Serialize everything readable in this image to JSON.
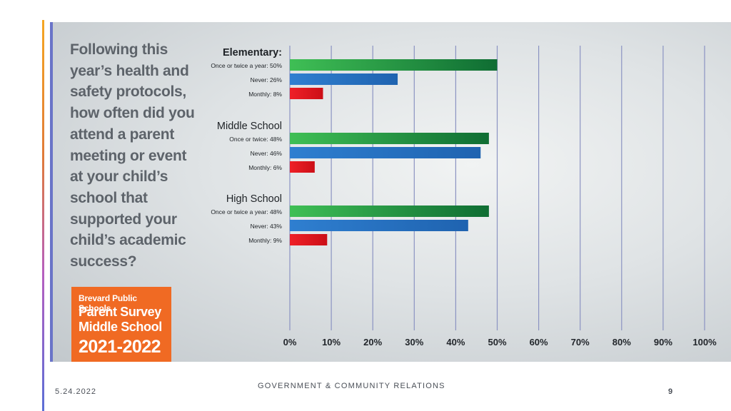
{
  "question": "Following this\nyear’s health and\nsafety protocols,\nhow often did you\nattend a parent\nmeeting or event\nat your child’s\nschool that\nsupported your\nchild’s academic\nsuccess?",
  "badge": {
    "line1": "Brevard Public Schools",
    "line2": "Parent Survey",
    "line3": "Middle School",
    "line4": "2021-2022",
    "color": "#f06a23"
  },
  "footer": {
    "date": "5.24.2022",
    "title": "GOVERNMENT & COMMUNITY RELATIONS",
    "page": "9"
  },
  "chart_data": {
    "type": "bar",
    "orientation": "horizontal",
    "xlim": [
      0,
      100
    ],
    "grid": true,
    "x_ticks": [
      "0%",
      "10%",
      "20%",
      "30%",
      "40%",
      "50%",
      "60%",
      "70%",
      "80%",
      "90%",
      "100%"
    ],
    "colors": {
      "green": "#2aa84a",
      "blue": "#2a72c4",
      "red": "#e0161e"
    },
    "groups": [
      {
        "name": "Elementary:",
        "bars": [
          {
            "label": "Once or twice a year: 50%",
            "value": 50,
            "color": "green"
          },
          {
            "label": "Never: 26%",
            "value": 26,
            "color": "blue"
          },
          {
            "label": "Monthly: 8%",
            "value": 8,
            "color": "red"
          }
        ]
      },
      {
        "name": "Middle School",
        "bars": [
          {
            "label": "Once or twice: 48%",
            "value": 48,
            "color": "green"
          },
          {
            "label": "Never: 46%",
            "value": 46,
            "color": "blue"
          },
          {
            "label": "Monthly: 6%",
            "value": 6,
            "color": "red"
          }
        ]
      },
      {
        "name": "High School",
        "bars": [
          {
            "label": "Once or twice a year: 48%",
            "value": 48,
            "color": "green"
          },
          {
            "label": "Never: 43%",
            "value": 43,
            "color": "blue"
          },
          {
            "label": "Monthly: 9%",
            "value": 9,
            "color": "red"
          }
        ]
      }
    ]
  }
}
